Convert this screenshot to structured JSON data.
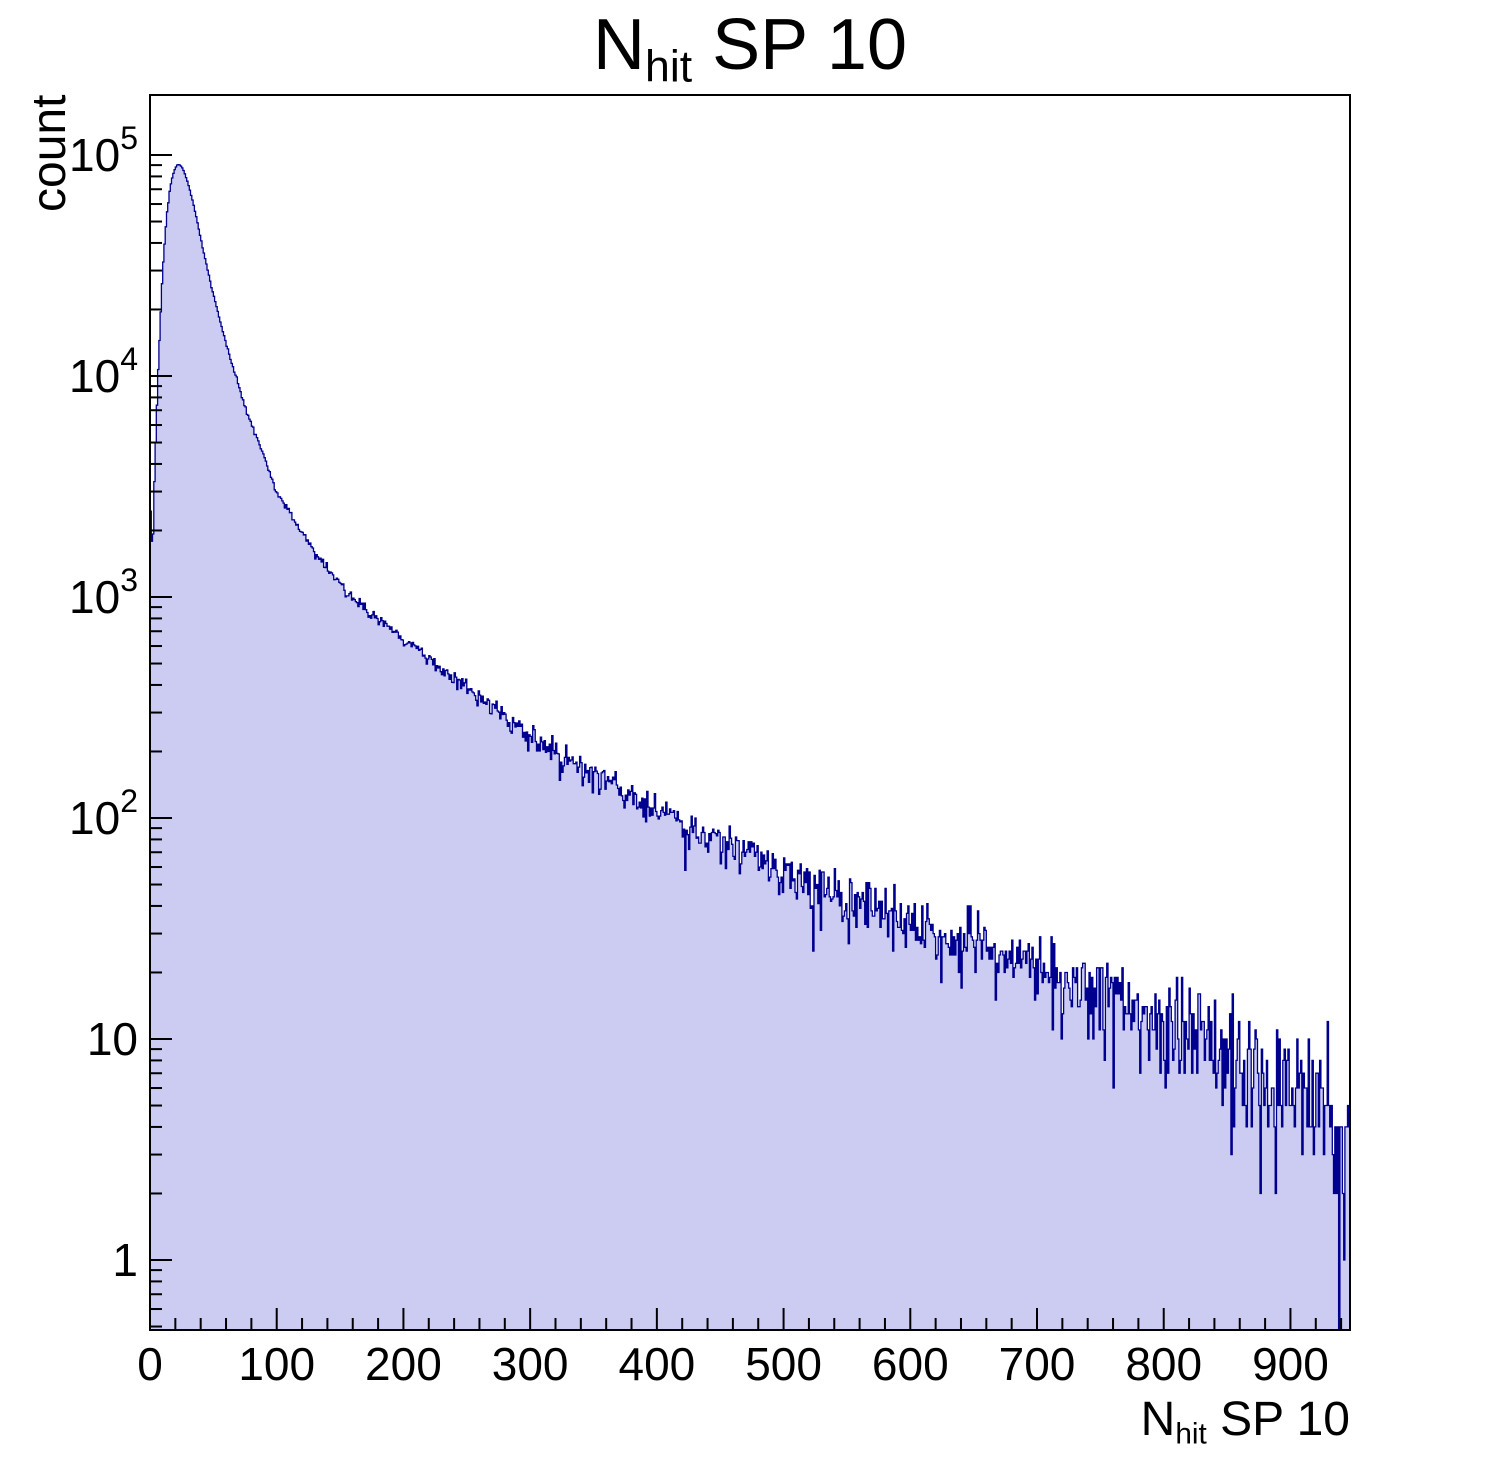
{
  "title": {
    "main": "N",
    "sub": "hit",
    "rest": " SP 10"
  },
  "y_axis": {
    "title": "count",
    "scale": "log",
    "tick_labels": [
      "1",
      "10",
      "10^2",
      "10^3",
      "10^4",
      "10^5"
    ]
  },
  "x_axis": {
    "title_main": "N",
    "title_sub": "hit",
    "title_rest": " SP 10",
    "tick_labels": [
      "0",
      "100",
      "200",
      "300",
      "400",
      "500",
      "600",
      "700",
      "800",
      "900"
    ]
  },
  "colors": {
    "fill": "#ccccf2",
    "line": "#00008f",
    "axis": "#000000",
    "background": "#ffffff"
  },
  "chart_data": {
    "type": "histogram",
    "title": "N_hit SP 10",
    "xlabel": "N_hit SP 10",
    "ylabel": "count",
    "x_range": [
      0,
      947
    ],
    "bin_width": 1,
    "y_scale": "log",
    "ylim": [
      0.5,
      200000
    ],
    "x_major_ticks": [
      0,
      100,
      200,
      300,
      400,
      500,
      600,
      700,
      800,
      900
    ],
    "x_minor_tick_step": 20,
    "y_major_ticks": [
      1,
      10,
      100,
      1000,
      10000,
      100000
    ],
    "peak": {
      "x": 22,
      "count": 91000
    },
    "envelope_points": [
      [
        0,
        2800
      ],
      [
        2,
        1500
      ],
      [
        4,
        4200
      ],
      [
        6,
        9000
      ],
      [
        8,
        17000
      ],
      [
        10,
        30000
      ],
      [
        13,
        52000
      ],
      [
        16,
        72000
      ],
      [
        19,
        85000
      ],
      [
        22,
        91000
      ],
      [
        25,
        89000
      ],
      [
        28,
        81000
      ],
      [
        31,
        71000
      ],
      [
        34,
        61000
      ],
      [
        37,
        51000
      ],
      [
        40,
        42000
      ],
      [
        44,
        33000
      ],
      [
        48,
        26000
      ],
      [
        52,
        21000
      ],
      [
        56,
        17000
      ],
      [
        60,
        14000
      ],
      [
        65,
        11200
      ],
      [
        70,
        9000
      ],
      [
        75,
        7300
      ],
      [
        80,
        6100
      ],
      [
        85,
        5100
      ],
      [
        90,
        4300
      ],
      [
        95,
        3600
      ],
      [
        100,
        3000
      ],
      [
        110,
        2400
      ],
      [
        120,
        1950
      ],
      [
        130,
        1600
      ],
      [
        140,
        1350
      ],
      [
        150,
        1150
      ],
      [
        160,
        1000
      ],
      [
        170,
        890
      ],
      [
        180,
        795
      ],
      [
        190,
        712
      ],
      [
        200,
        640
      ],
      [
        210,
        578
      ],
      [
        220,
        522
      ],
      [
        230,
        472
      ],
      [
        240,
        428
      ],
      [
        250,
        390
      ],
      [
        260,
        352
      ],
      [
        270,
        320
      ],
      [
        280,
        290
      ],
      [
        290,
        262
      ],
      [
        300,
        236
      ],
      [
        310,
        215
      ],
      [
        320,
        200
      ],
      [
        330,
        184
      ],
      [
        340,
        169
      ],
      [
        350,
        156
      ],
      [
        360,
        146
      ],
      [
        370,
        136
      ],
      [
        380,
        126
      ],
      [
        390,
        116
      ],
      [
        400,
        108
      ],
      [
        420,
        94
      ],
      [
        440,
        83
      ],
      [
        460,
        74
      ],
      [
        480,
        66
      ],
      [
        500,
        59
      ],
      [
        520,
        52
      ],
      [
        540,
        47
      ],
      [
        560,
        42
      ],
      [
        580,
        38
      ],
      [
        600,
        34
      ],
      [
        620,
        30
      ],
      [
        640,
        28
      ],
      [
        660,
        25
      ],
      [
        680,
        22
      ],
      [
        700,
        20
      ],
      [
        720,
        18
      ],
      [
        740,
        16
      ],
      [
        760,
        14.5
      ],
      [
        780,
        13
      ],
      [
        800,
        11.5
      ],
      [
        820,
        10.3
      ],
      [
        840,
        9.2
      ],
      [
        860,
        8.2
      ],
      [
        880,
        7.2
      ],
      [
        900,
        6.3
      ],
      [
        920,
        5.3
      ],
      [
        947,
        4.2
      ]
    ],
    "noise_model": "poisson",
    "random_seed": 9
  }
}
